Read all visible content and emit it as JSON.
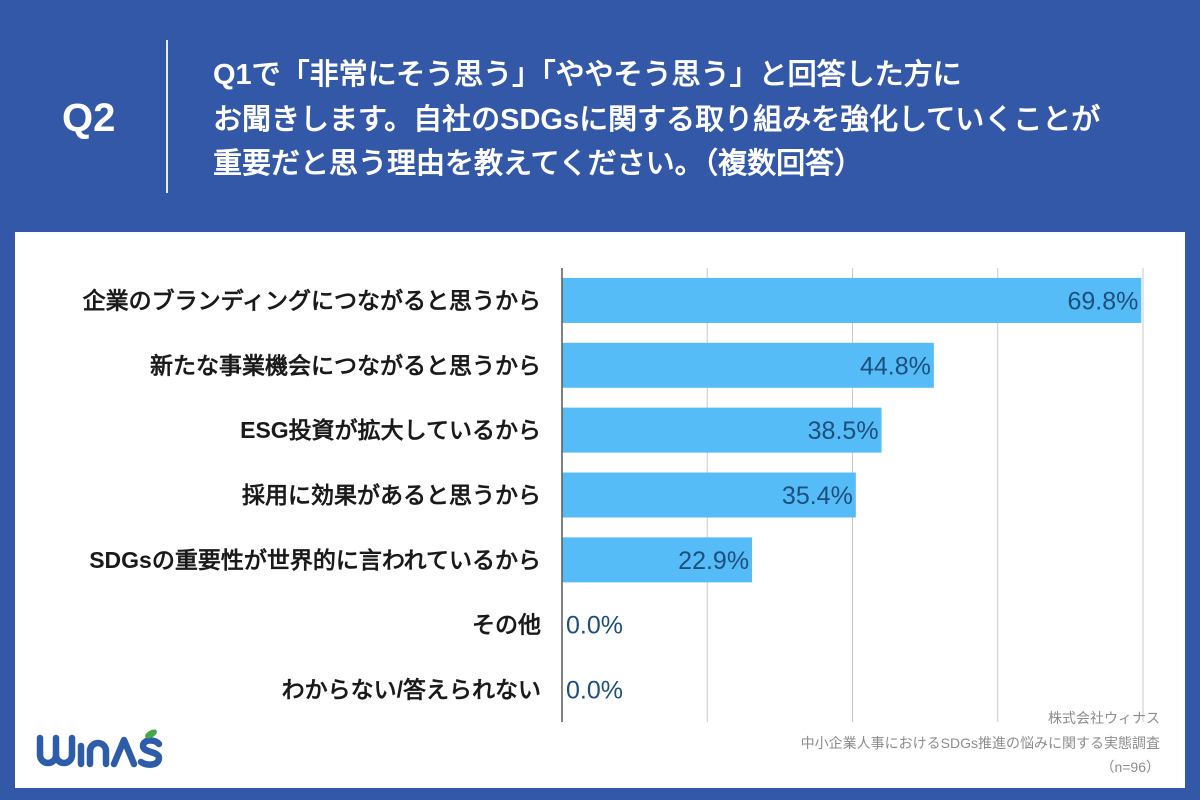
{
  "header": {
    "question_number": "Q2",
    "question_lines": [
      "Q1で「非常にそう思う」「ややそう思う」と回答した方に",
      "お聞きします。自社のSDGsに関する取り組みを強化していくことが",
      "重要だと思う理由を教えてください。（複数回答）"
    ]
  },
  "chart_data": {
    "type": "bar",
    "orientation": "horizontal",
    "categories": [
      "企業のブランディングにつながると思うから",
      "新たな事業機会につながると思うから",
      "ESG投資が拡大しているから",
      "採用に効果があると思うから",
      "SDGsの重要性が世界的に言われているから",
      "その他",
      "わからない/答えられない"
    ],
    "values": [
      69.8,
      44.8,
      38.5,
      35.4,
      22.9,
      0.0,
      0.0
    ],
    "data_labels": [
      "69.8%",
      "44.8%",
      "38.5%",
      "35.4%",
      "22.9%",
      "0.0%",
      "0.0%"
    ],
    "xlim": [
      0,
      70
    ],
    "major_unit": 17.5,
    "grid": true,
    "legend": "none"
  },
  "footer": {
    "company": "株式会社ウィナス",
    "survey_title": "中小企業人事におけるSDGs推進の悩みに関する実態調査",
    "sample_size": "（n=96）"
  },
  "logo": {
    "text": "winas"
  },
  "colors": {
    "background": "#3358a7",
    "panel": "#ffffff",
    "bar": "#56bcf7",
    "data_label": "#1d4f7d",
    "category_label": "#1a1a1a",
    "gridline": "#c9c9c9",
    "axis": "#595959",
    "footer_text": "#8c8c8c",
    "logo_blue": "#2d5ca8",
    "logo_green": "#43a846"
  }
}
